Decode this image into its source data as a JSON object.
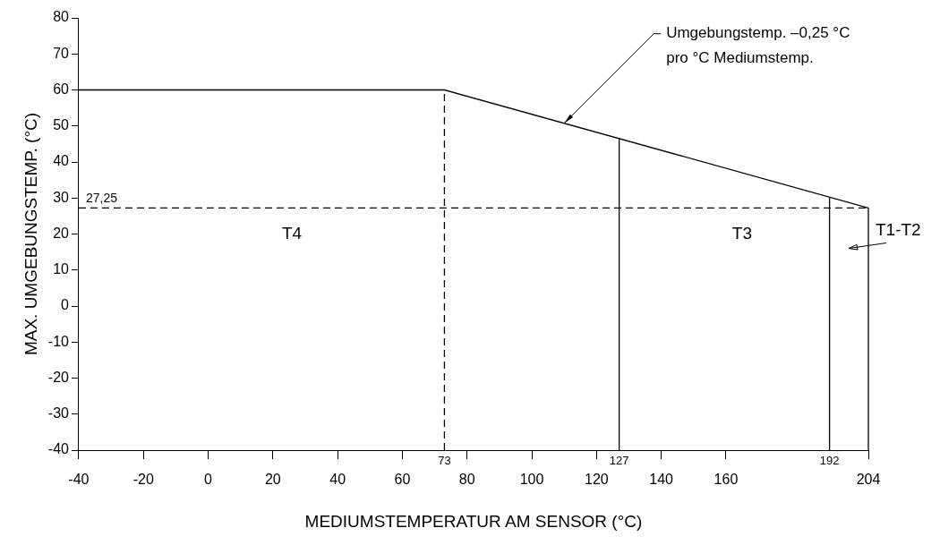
{
  "chart_data": {
    "type": "line",
    "xlabel": "MEDIUMSTEMPERATUR AM SENSOR (°C)",
    "ylabel": "MAX. UMGEBUNGSTEMP. (°C)",
    "x": [
      -40,
      73,
      204
    ],
    "series": [
      {
        "color": "#000000",
        "values": [
          60,
          60,
          27.25
        ]
      }
    ],
    "xlim": [
      -40,
      204
    ],
    "xticks": [
      -40,
      -20,
      0,
      20,
      40,
      60,
      80,
      100,
      120,
      140,
      160,
      204
    ],
    "ylim": [
      -40,
      80
    ],
    "yticks": [
      -40,
      -30,
      -20,
      -10,
      0,
      10,
      20,
      30,
      40,
      50,
      60,
      70,
      80
    ],
    "grid": false,
    "legend": false,
    "marker": "none",
    "line_style": "solid",
    "ref_lines": [
      {
        "axis": "y",
        "value": 27.25,
        "label": "27,25",
        "line_style": "dashed",
        "color": "#000000"
      },
      {
        "axis": "x",
        "value": 73,
        "label": "73",
        "line_style": "dashed",
        "color": "#000000"
      },
      {
        "axis": "x",
        "value": 127,
        "label": "127",
        "line_style": "solid",
        "color": "#000000"
      },
      {
        "axis": "x",
        "value": 192,
        "label": "192",
        "line_style": "solid",
        "color": "#000000"
      },
      {
        "axis": "x",
        "value": 204,
        "label": null,
        "line_style": "solid",
        "color": "#000000"
      }
    ],
    "annotations": [
      "T4",
      "T3",
      "T1-T2",
      {
        "text": "Umgebungstemp. –0,25 °C\npro °C Mediumstemp.",
        "x": 110,
        "y": 50.75
      }
    ]
  }
}
